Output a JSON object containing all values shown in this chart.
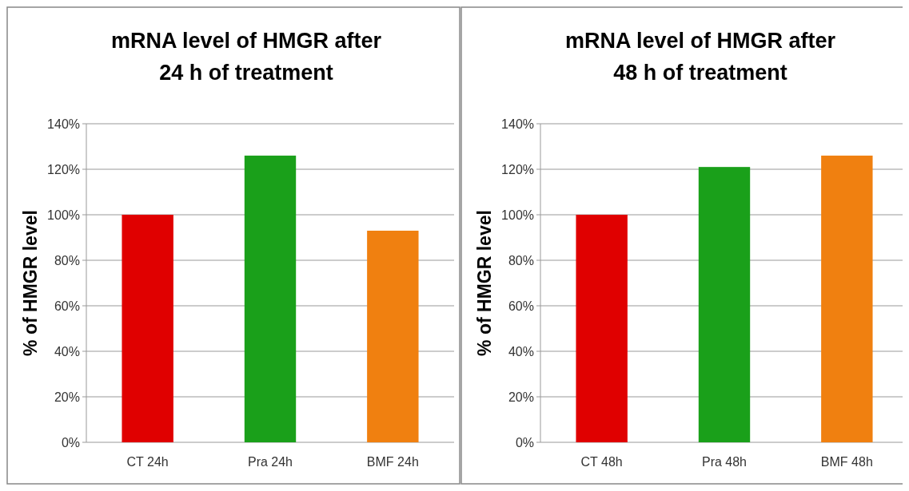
{
  "chart_data": [
    {
      "type": "bar",
      "title": "mRNA level of HMGR after\n24 h of treatment",
      "ylabel": "% of HMGR level",
      "categories": [
        "CT 24h",
        "Pra 24h",
        "BMF 24h"
      ],
      "values": [
        100,
        126,
        93
      ],
      "colors": [
        "#e00000",
        "#1aa01a",
        "#f08010"
      ],
      "ylim": [
        0,
        140
      ],
      "yticks": [
        {
          "value": 0,
          "label": "0%"
        },
        {
          "value": 20,
          "label": "20%"
        },
        {
          "value": 40,
          "label": "40%"
        },
        {
          "value": 60,
          "label": "60%"
        },
        {
          "value": 80,
          "label": "80%"
        },
        {
          "value": 100,
          "label": "100%"
        },
        {
          "value": 120,
          "label": "120%"
        },
        {
          "value": 140,
          "label": "140%"
        }
      ],
      "grid": "y"
    },
    {
      "type": "bar",
      "title": "mRNA level of HMGR after\n48 h of treatment",
      "ylabel": "% of HMGR level",
      "categories": [
        "CT 48h",
        "Pra 48h",
        "BMF 48h"
      ],
      "values": [
        100,
        121,
        126
      ],
      "colors": [
        "#e00000",
        "#1aa01a",
        "#f08010"
      ],
      "ylim": [
        0,
        140
      ],
      "yticks": [
        {
          "value": 0,
          "label": "0%"
        },
        {
          "value": 20,
          "label": "20%"
        },
        {
          "value": 40,
          "label": "40%"
        },
        {
          "value": 60,
          "label": "60%"
        },
        {
          "value": 80,
          "label": "80%"
        },
        {
          "value": 100,
          "label": "100%"
        },
        {
          "value": 120,
          "label": "120%"
        },
        {
          "value": 140,
          "label": "140%"
        }
      ],
      "grid": "y"
    }
  ]
}
